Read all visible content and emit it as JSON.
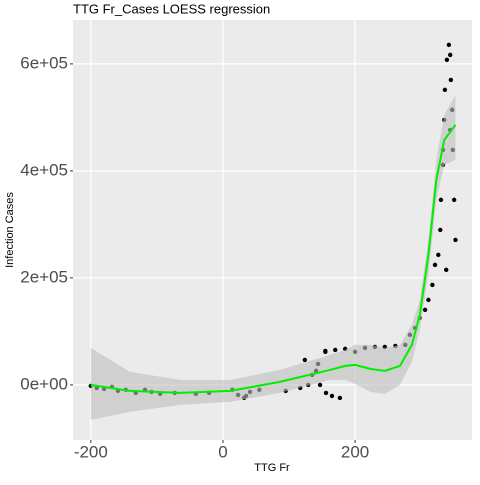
{
  "chart_data": {
    "type": "scatter",
    "title": "TTG Fr_Cases LOESS regression",
    "xlabel": "TTG Fr",
    "ylabel": "Infection Cases",
    "xlim": [
      -227,
      377
    ],
    "ylim": [
      -103000,
      682000
    ],
    "xticks": [
      -200,
      0,
      200
    ],
    "yticks": [
      {
        "value": 0,
        "label": "0e+00"
      },
      {
        "value": 200000,
        "label": "2e+05"
      },
      {
        "value": 400000,
        "label": "4e+05"
      },
      {
        "value": 600000,
        "label": "6e+05"
      }
    ],
    "grid": true,
    "point_color": "#000000",
    "x": [
      -200,
      -191,
      -180,
      -168,
      -159,
      -147,
      -132,
      -118,
      -108,
      -95,
      -73,
      -41,
      -21,
      14,
      23,
      32,
      35,
      41,
      55,
      95,
      117,
      129,
      135,
      141,
      147,
      156,
      165,
      177,
      124,
      144,
      155,
      155,
      170,
      185,
      200,
      215,
      230,
      245,
      261,
      276,
      283,
      291,
      298,
      306,
      311,
      317,
      321,
      326,
      329,
      330,
      333,
      335,
      336,
      339,
      342,
      344,
      345,
      347,
      348,
      350,
      352,
      338,
      333,
      344
    ],
    "y": [
      -1900,
      -5600,
      -7500,
      -3700,
      -11200,
      -9300,
      -15000,
      -9300,
      -13100,
      -16800,
      -15000,
      -16800,
      -15000,
      -9300,
      -18700,
      -24300,
      -20600,
      -13100,
      -9300,
      -11200,
      -5600,
      0,
      18700,
      26200,
      0,
      -15000,
      -20600,
      -24300,
      46700,
      39200,
      61700,
      63500,
      65400,
      67300,
      61700,
      69200,
      71000,
      71000,
      72900,
      74800,
      93500,
      106500,
      125200,
      140200,
      158900,
      186900,
      224300,
      243000,
      289700,
      345800,
      439200,
      495300,
      551400,
      607500,
      635500,
      616800,
      570000,
      514000,
      439200,
      345800,
      271000,
      215000,
      411200,
      476600
    ],
    "fit": {
      "color": "#00ee00",
      "band_color": "#bebebe",
      "x": [
        -200,
        -141,
        -65,
        11,
        86,
        162,
        185,
        200,
        223,
        245,
        268,
        286,
        298,
        311,
        323,
        335,
        352
      ],
      "values": [
        0,
        -11200,
        -15000,
        -11200,
        5600,
        28000,
        35500,
        37400,
        29900,
        26200,
        35500,
        74800,
        130800,
        243000,
        383100,
        457900,
        486000
      ],
      "lower": [
        -65400,
        -50500,
        -37400,
        -31800,
        -15000,
        9300,
        9300,
        1900,
        -13100,
        -16800,
        0,
        43000,
        102800,
        205600,
        345800,
        411200,
        420500
      ],
      "upper": [
        69200,
        24300,
        9300,
        9300,
        28000,
        56100,
        65400,
        74800,
        74800,
        69200,
        74800,
        112100,
        158900,
        271000,
        420500,
        504600,
        542000
      ]
    }
  }
}
